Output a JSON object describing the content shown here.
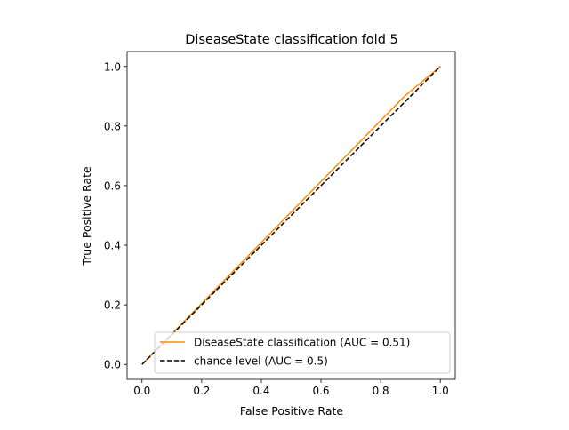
{
  "chart_data": {
    "type": "line",
    "title": "DiseaseState classification fold 5",
    "xlabel": "False Positive Rate",
    "ylabel": "True Positive Rate",
    "xlim": [
      -0.05,
      1.05
    ],
    "ylim": [
      -0.05,
      1.05
    ],
    "xticks": [
      0.0,
      0.2,
      0.4,
      0.6,
      0.8,
      1.0
    ],
    "yticks": [
      0.0,
      0.2,
      0.4,
      0.6,
      0.8,
      1.0
    ],
    "xtick_labels": [
      "0.0",
      "0.2",
      "0.4",
      "0.6",
      "0.8",
      "1.0"
    ],
    "ytick_labels": [
      "0.0",
      "0.2",
      "0.4",
      "0.6",
      "0.8",
      "1.0"
    ],
    "grid": false,
    "legend_position": "lower-right",
    "series": [
      {
        "name": "DiseaseState classification (AUC = 0.51)",
        "color": "#ff8c00",
        "dash": "solid",
        "x": [
          0.0,
          0.88,
          1.0
        ],
        "y": [
          0.0,
          0.9,
          1.0
        ]
      },
      {
        "name": "chance level (AUC = 0.5)",
        "color": "#000000",
        "dash": "dashed",
        "x": [
          0.0,
          1.0
        ],
        "y": [
          0.0,
          1.0
        ]
      }
    ]
  }
}
